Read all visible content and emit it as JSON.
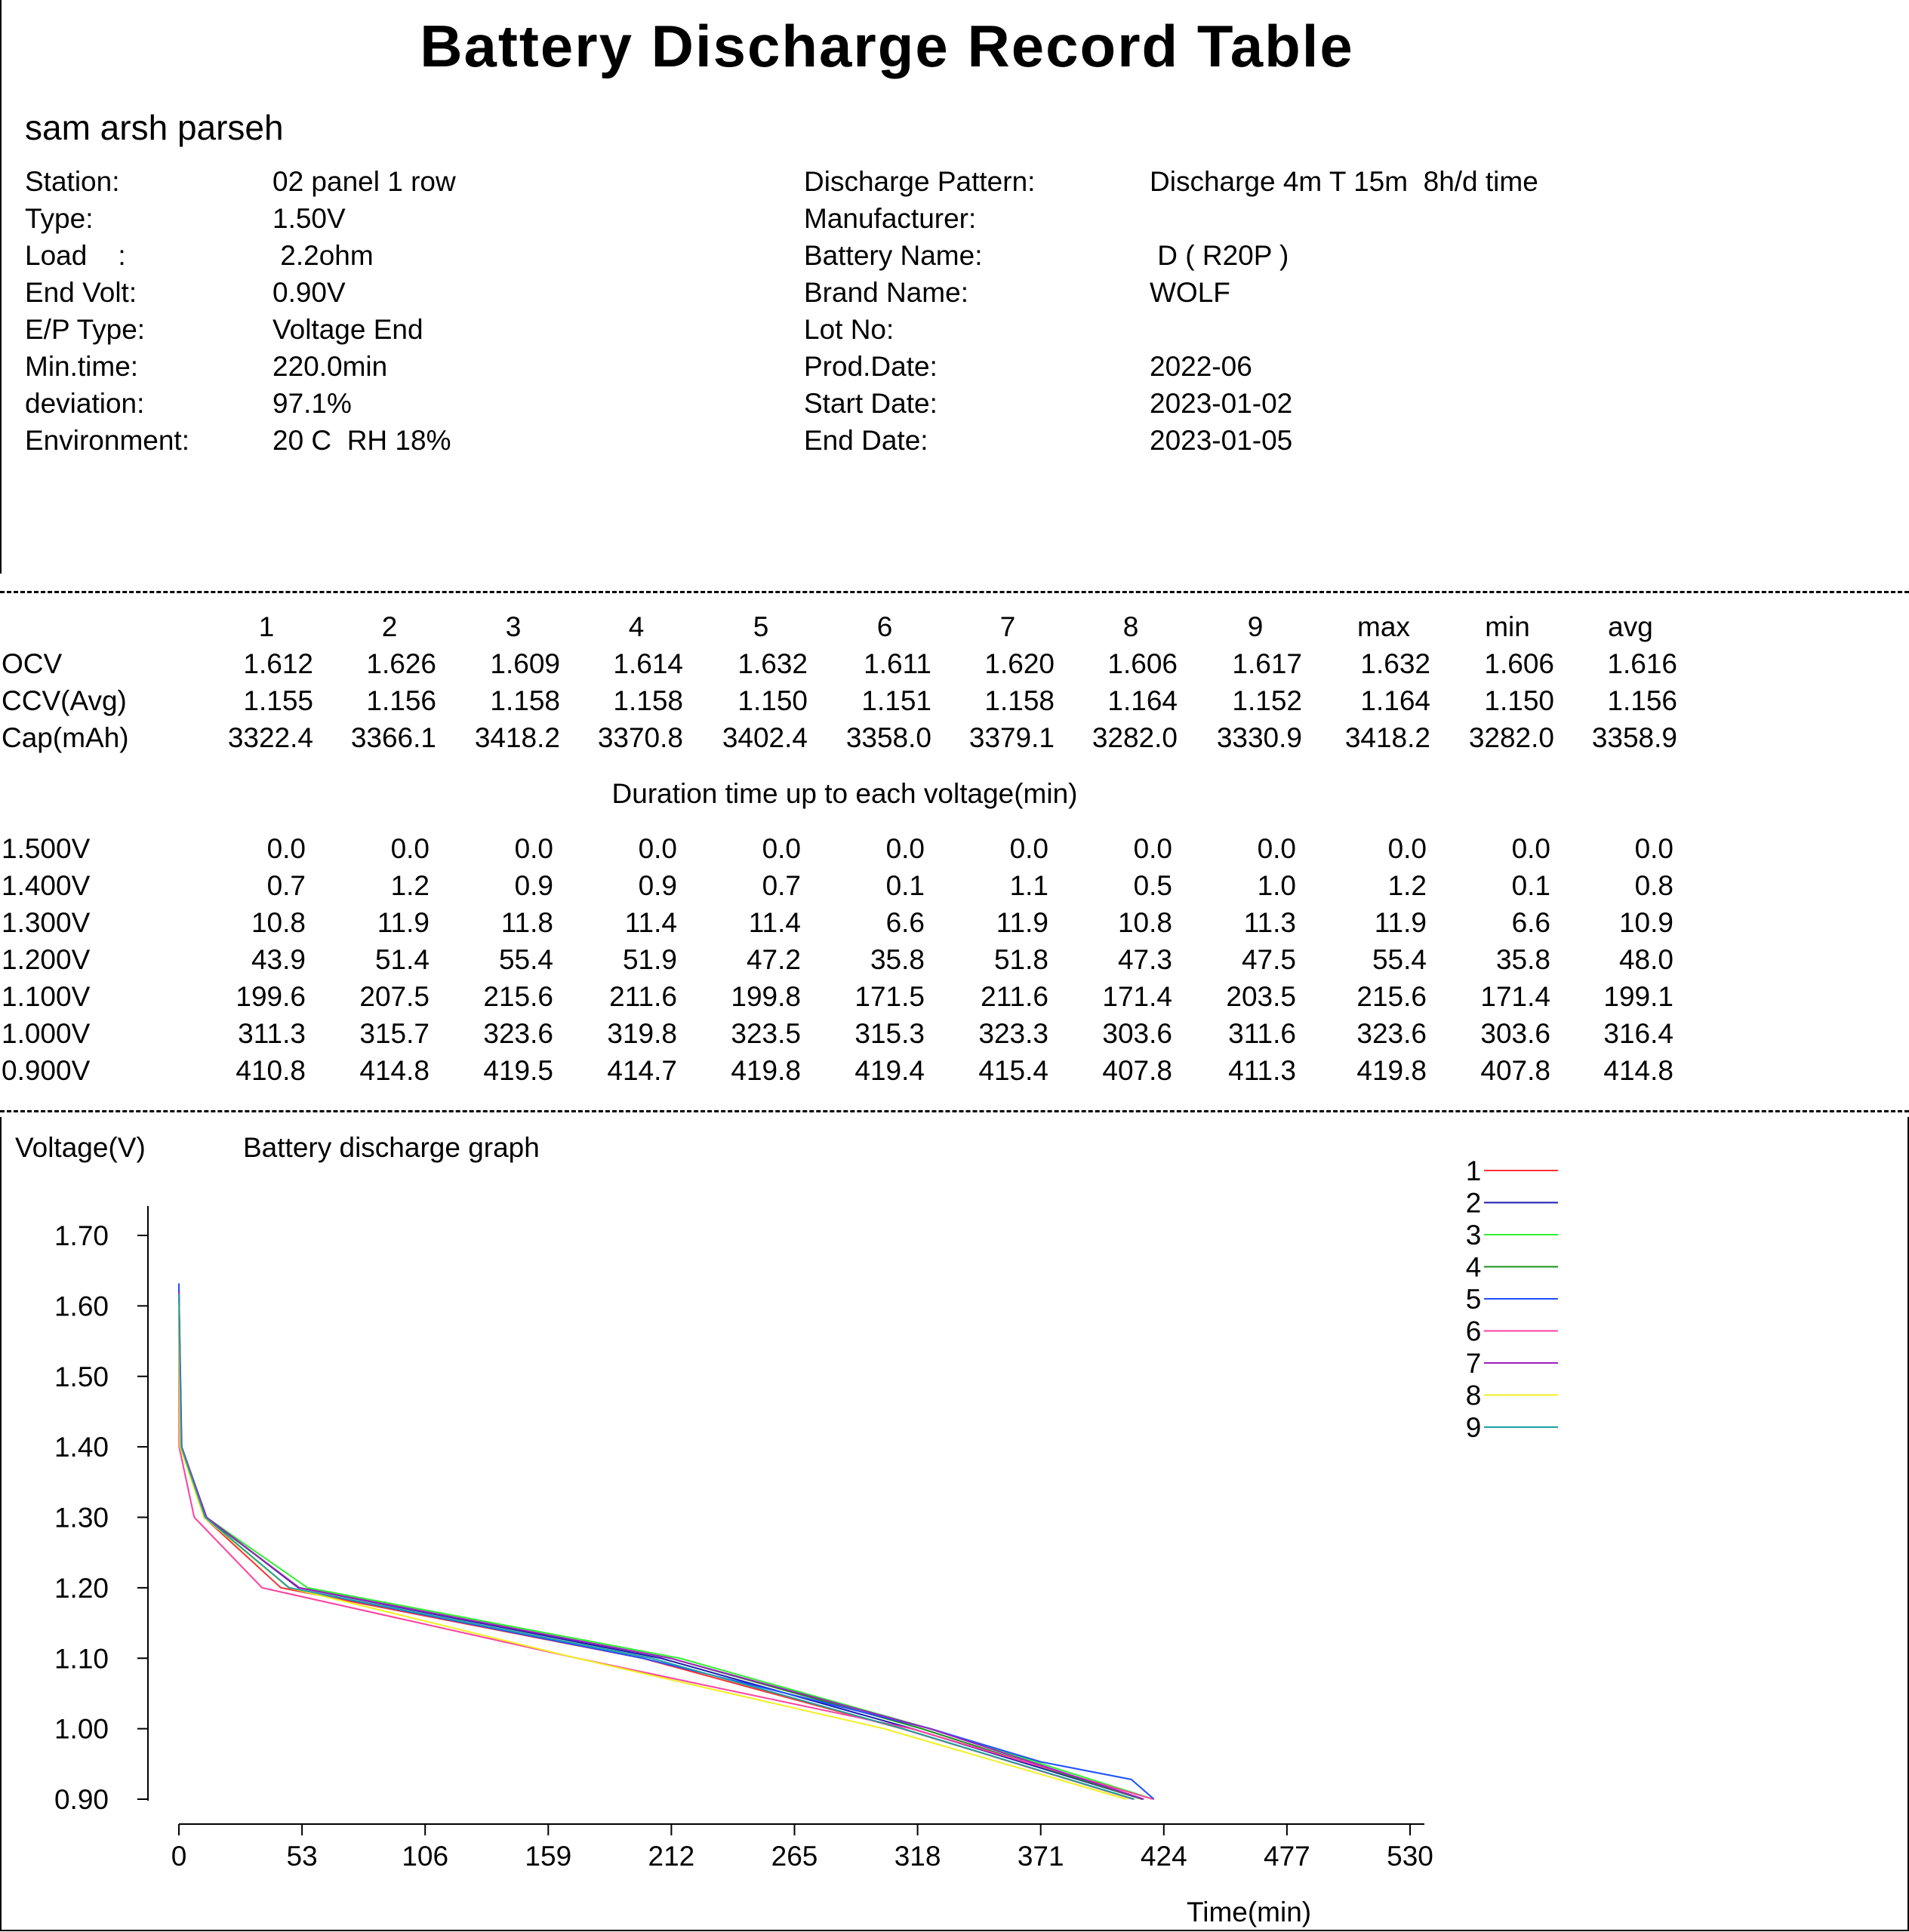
{
  "title": "Battery Discharge Record Table",
  "operator": "sam arsh parseh",
  "info_left": [
    {
      "label": "Station:",
      "value": "02 panel 1 row"
    },
    {
      "label": "Type:",
      "value": "1.50V"
    },
    {
      "label": "Load    :",
      "value": " 2.2ohm"
    },
    {
      "label": "End Volt:",
      "value": "0.90V"
    },
    {
      "label": "E/P Type:",
      "value": "Voltage End"
    },
    {
      "label": "Min.time:",
      "value": "220.0min"
    },
    {
      "label": "deviation:",
      "value": "97.1%"
    },
    {
      "label": "Environment:",
      "value": "20 C  RH 18%"
    }
  ],
  "info_right": [
    {
      "label": "Discharge Pattern:",
      "value": "Discharge 4m T 15m  8h/d time"
    },
    {
      "label": "Manufacturer:",
      "value": ""
    },
    {
      "label": "Battery Name:",
      "value": " D ( R20P )"
    },
    {
      "label": "Brand Name:",
      "value": "WOLF"
    },
    {
      "label": "Lot No:",
      "value": ""
    },
    {
      "label": "Prod.Date:",
      "value": "2022-06"
    },
    {
      "label": "Start Date:",
      "value": "2023-01-02"
    },
    {
      "label": "End Date:",
      "value": "2023-01-05"
    }
  ],
  "summary": {
    "columns": [
      "1",
      "2",
      "3",
      "4",
      "5",
      "6",
      "7",
      "8",
      "9",
      "max",
      "min",
      "avg"
    ],
    "rows": [
      {
        "label": "OCV",
        "values": [
          "1.612",
          "1.626",
          "1.609",
          "1.614",
          "1.632",
          "1.611",
          "1.620",
          "1.606",
          "1.617",
          "1.632",
          "1.606",
          "1.616"
        ]
      },
      {
        "label": "CCV(Avg)",
        "values": [
          "1.155",
          "1.156",
          "1.158",
          "1.158",
          "1.150",
          "1.151",
          "1.158",
          "1.164",
          "1.152",
          "1.164",
          "1.150",
          "1.156"
        ]
      },
      {
        "label": "Cap(mAh)",
        "values": [
          "3322.4",
          "3366.1",
          "3418.2",
          "3370.8",
          "3402.4",
          "3358.0",
          "3379.1",
          "3282.0",
          "3330.9",
          "3418.2",
          "3282.0",
          "3358.9"
        ]
      }
    ]
  },
  "duration": {
    "title": "Duration time up to each voltage(min)",
    "rows": [
      {
        "label": "1.500V",
        "values": [
          "0.0",
          "0.0",
          "0.0",
          "0.0",
          "0.0",
          "0.0",
          "0.0",
          "0.0",
          "0.0",
          "0.0",
          "0.0",
          "0.0"
        ]
      },
      {
        "label": "1.400V",
        "values": [
          "0.7",
          "1.2",
          "0.9",
          "0.9",
          "0.7",
          "0.1",
          "1.1",
          "0.5",
          "1.0",
          "1.2",
          "0.1",
          "0.8"
        ]
      },
      {
        "label": "1.300V",
        "values": [
          "10.8",
          "11.9",
          "11.8",
          "11.4",
          "11.4",
          "6.6",
          "11.9",
          "10.8",
          "11.3",
          "11.9",
          "6.6",
          "10.9"
        ]
      },
      {
        "label": "1.200V",
        "values": [
          "43.9",
          "51.4",
          "55.4",
          "51.9",
          "47.2",
          "35.8",
          "51.8",
          "47.3",
          "47.5",
          "55.4",
          "35.8",
          "48.0"
        ]
      },
      {
        "label": "1.100V",
        "values": [
          "199.6",
          "207.5",
          "215.6",
          "211.6",
          "199.8",
          "171.5",
          "211.6",
          "171.4",
          "203.5",
          "215.6",
          "171.4",
          "199.1"
        ]
      },
      {
        "label": "1.000V",
        "values": [
          "311.3",
          "315.7",
          "323.6",
          "319.8",
          "323.5",
          "315.3",
          "323.3",
          "303.6",
          "311.6",
          "323.6",
          "303.6",
          "316.4"
        ]
      },
      {
        "label": "0.900V",
        "values": [
          "410.8",
          "414.8",
          "419.5",
          "414.7",
          "419.8",
          "419.4",
          "415.4",
          "407.8",
          "411.3",
          "419.8",
          "407.8",
          "414.8"
        ]
      }
    ]
  },
  "chart_data": {
    "type": "line",
    "title": "Battery discharge graph",
    "ylabel": "Voltage(V)",
    "xlabel": "Time(min)",
    "xlim": [
      0,
      530
    ],
    "ylim": [
      0.9,
      1.7
    ],
    "x_ticks": [
      "0",
      "53",
      "106",
      "159",
      "212",
      "265",
      "318",
      "371",
      "424",
      "477",
      "530"
    ],
    "y_ticks": [
      "1.70",
      "1.60",
      "1.50",
      "1.40",
      "1.30",
      "1.20",
      "1.10",
      "1.00",
      "0.90"
    ],
    "legend_position": "top-right",
    "grid": false,
    "series": [
      {
        "name": "1",
        "color": "#ff3030",
        "points": [
          [
            0,
            1.612
          ],
          [
            0.7,
            1.4
          ],
          [
            10.8,
            1.3
          ],
          [
            43.9,
            1.2
          ],
          [
            199.6,
            1.1
          ],
          [
            311.3,
            1.0
          ],
          [
            410.8,
            0.9
          ]
        ]
      },
      {
        "name": "2",
        "color": "#1a1ab0",
        "points": [
          [
            0,
            1.626
          ],
          [
            1.2,
            1.4
          ],
          [
            11.9,
            1.3
          ],
          [
            51.4,
            1.2
          ],
          [
            207.5,
            1.1
          ],
          [
            315.7,
            1.0
          ],
          [
            414.8,
            0.9
          ]
        ]
      },
      {
        "name": "3",
        "color": "#30f030",
        "points": [
          [
            0,
            1.609
          ],
          [
            0.9,
            1.4
          ],
          [
            11.8,
            1.3
          ],
          [
            55.4,
            1.2
          ],
          [
            215.6,
            1.1
          ],
          [
            323.6,
            1.0
          ],
          [
            419.5,
            0.9
          ]
        ]
      },
      {
        "name": "4",
        "color": "#189018",
        "points": [
          [
            0,
            1.614
          ],
          [
            0.9,
            1.4
          ],
          [
            11.4,
            1.3
          ],
          [
            51.9,
            1.2
          ],
          [
            211.6,
            1.1
          ],
          [
            319.8,
            1.0
          ],
          [
            414.7,
            0.9
          ]
        ]
      },
      {
        "name": "5",
        "color": "#2050ff",
        "points": [
          [
            0,
            1.632
          ],
          [
            0.7,
            1.4
          ],
          [
            11.4,
            1.3
          ],
          [
            47.2,
            1.2
          ],
          [
            199.8,
            1.1
          ],
          [
            323.5,
            1.0
          ],
          [
            371,
            0.953
          ],
          [
            410,
            0.928
          ],
          [
            419.8,
            0.9
          ]
        ]
      },
      {
        "name": "6",
        "color": "#ff40a0",
        "points": [
          [
            0,
            1.611
          ],
          [
            0.1,
            1.4
          ],
          [
            6.6,
            1.3
          ],
          [
            35.8,
            1.2
          ],
          [
            171.5,
            1.1
          ],
          [
            315.3,
            1.0
          ],
          [
            419.4,
            0.9
          ]
        ]
      },
      {
        "name": "7",
        "color": "#a020c0",
        "points": [
          [
            0,
            1.62
          ],
          [
            1.1,
            1.4
          ],
          [
            11.9,
            1.3
          ],
          [
            51.8,
            1.2
          ],
          [
            211.6,
            1.1
          ],
          [
            323.3,
            1.0
          ],
          [
            415.4,
            0.9
          ]
        ]
      },
      {
        "name": "8",
        "color": "#f0f020",
        "points": [
          [
            0,
            1.606
          ],
          [
            0.5,
            1.4
          ],
          [
            10.8,
            1.3
          ],
          [
            47.3,
            1.2
          ],
          [
            171.4,
            1.1
          ],
          [
            303.6,
            1.0
          ],
          [
            407.8,
            0.9
          ]
        ]
      },
      {
        "name": "9",
        "color": "#20a0a0",
        "points": [
          [
            0,
            1.617
          ],
          [
            1.0,
            1.4
          ],
          [
            11.3,
            1.3
          ],
          [
            47.5,
            1.2
          ],
          [
            203.5,
            1.1
          ],
          [
            311.6,
            1.0
          ],
          [
            411.3,
            0.9
          ]
        ]
      }
    ]
  }
}
